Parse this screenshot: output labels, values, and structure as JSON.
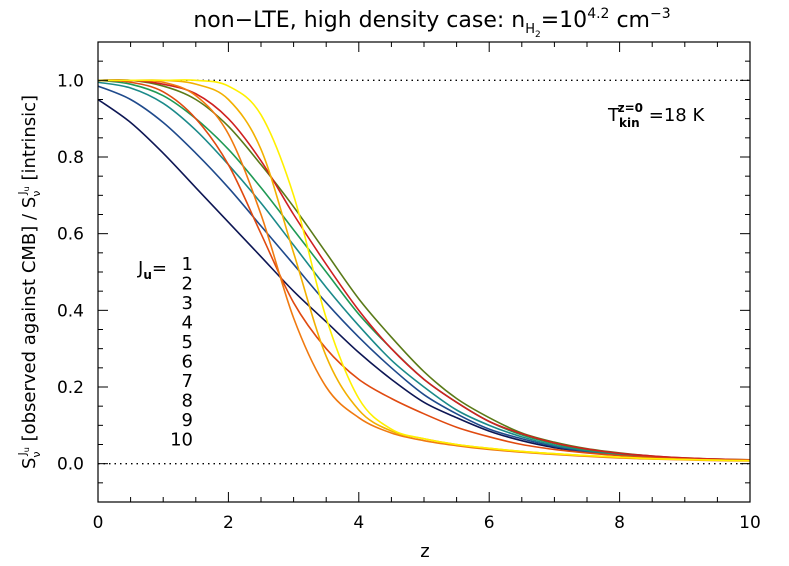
{
  "chart_data": {
    "type": "line",
    "title": {
      "prefix": "non−LTE, high density case: n",
      "sub": "H",
      "subsub": "2",
      "eq": "=10",
      "sup": "4.2",
      "unit": " cm",
      "unit_sup": "−3"
    },
    "xlabel": "z",
    "ylabel": {
      "a": "S",
      "a_sub": "ν",
      "a_sup": "J",
      "a_supsub": "u",
      "b": " [observed against CMB] / S",
      "c_sub": "ν",
      "c_sup": "J",
      "c_supsub": "u",
      "d": " [intrinsic]"
    },
    "xlim": [
      0,
      10
    ],
    "ylim": [
      -0.1,
      1.1
    ],
    "x_ticks": [
      "0",
      "2",
      "4",
      "6",
      "8",
      "10"
    ],
    "y_ticks": [
      "0.0",
      "0.2",
      "0.4",
      "0.6",
      "0.8",
      "1.0"
    ],
    "reference_lines": [
      1.0,
      0.0
    ],
    "annotation": {
      "T": "T",
      "sub": "kin",
      "sup": "z=0",
      "value": " =18 K"
    },
    "legend": {
      "title_main": "J",
      "title_sub": "u",
      "title_eq": "=",
      "placement": "center-left"
    },
    "x": [
      0,
      0.5,
      1,
      1.5,
      2,
      2.5,
      3,
      3.5,
      4,
      4.5,
      5,
      5.5,
      6,
      6.5,
      7,
      7.5,
      8,
      8.5,
      9,
      9.5,
      10
    ],
    "series": [
      {
        "name": "1",
        "color": "#0d1654",
        "values": [
          0.95,
          0.89,
          0.81,
          0.72,
          0.63,
          0.54,
          0.45,
          0.37,
          0.29,
          0.22,
          0.16,
          0.12,
          0.085,
          0.06,
          0.042,
          0.03,
          0.022,
          0.016,
          0.012,
          0.01,
          0.008
        ]
      },
      {
        "name": "2",
        "color": "#1f4a8c",
        "values": [
          0.985,
          0.95,
          0.89,
          0.81,
          0.72,
          0.62,
          0.52,
          0.42,
          0.33,
          0.25,
          0.18,
          0.13,
          0.09,
          0.065,
          0.045,
          0.032,
          0.023,
          0.017,
          0.013,
          0.01,
          0.008
        ]
      },
      {
        "name": "3",
        "color": "#1b8a8a",
        "values": [
          0.995,
          0.98,
          0.94,
          0.87,
          0.78,
          0.68,
          0.57,
          0.46,
          0.36,
          0.27,
          0.2,
          0.14,
          0.1,
          0.07,
          0.048,
          0.034,
          0.024,
          0.018,
          0.013,
          0.01,
          0.008
        ]
      },
      {
        "name": "4",
        "color": "#1f9a55",
        "values": [
          1.0,
          0.99,
          0.96,
          0.9,
          0.82,
          0.72,
          0.61,
          0.5,
          0.39,
          0.3,
          0.22,
          0.16,
          0.11,
          0.075,
          0.052,
          0.036,
          0.026,
          0.019,
          0.014,
          0.011,
          0.009
        ]
      },
      {
        "name": "5",
        "color": "#5a7a18",
        "values": [
          1.0,
          1.0,
          0.985,
          0.95,
          0.88,
          0.78,
          0.67,
          0.55,
          0.43,
          0.33,
          0.24,
          0.17,
          0.12,
          0.08,
          0.056,
          0.039,
          0.028,
          0.02,
          0.015,
          0.012,
          0.01
        ]
      },
      {
        "name": "6",
        "color": "#d02020",
        "values": [
          1.0,
          1.0,
          0.99,
          0.965,
          0.9,
          0.79,
          0.65,
          0.52,
          0.4,
          0.3,
          0.22,
          0.16,
          0.11,
          0.078,
          0.054,
          0.038,
          0.027,
          0.02,
          0.015,
          0.012,
          0.01
        ]
      },
      {
        "name": "7",
        "color": "#e04a10",
        "values": [
          1.0,
          0.995,
          0.97,
          0.9,
          0.78,
          0.6,
          0.42,
          0.3,
          0.22,
          0.17,
          0.13,
          0.095,
          0.07,
          0.05,
          0.037,
          0.028,
          0.021,
          0.016,
          0.012,
          0.01,
          0.008
        ]
      },
      {
        "name": "8",
        "color": "#f07a10",
        "values": [
          1.0,
          1.0,
          0.995,
          0.96,
          0.86,
          0.65,
          0.38,
          0.2,
          0.12,
          0.08,
          0.06,
          0.047,
          0.037,
          0.03,
          0.024,
          0.019,
          0.015,
          0.012,
          0.01,
          0.008,
          0.007
        ]
      },
      {
        "name": "9",
        "color": "#f2b000",
        "values": [
          1.0,
          1.0,
          1.0,
          0.99,
          0.95,
          0.82,
          0.55,
          0.28,
          0.14,
          0.085,
          0.065,
          0.05,
          0.04,
          0.032,
          0.026,
          0.021,
          0.017,
          0.013,
          0.011,
          0.009,
          0.008
        ]
      },
      {
        "name": "10",
        "color": "#fff000",
        "values": [
          1.0,
          1.0,
          1.0,
          1.0,
          0.985,
          0.91,
          0.7,
          0.38,
          0.17,
          0.09,
          0.065,
          0.05,
          0.04,
          0.032,
          0.026,
          0.021,
          0.017,
          0.013,
          0.011,
          0.009,
          0.008
        ]
      }
    ]
  }
}
